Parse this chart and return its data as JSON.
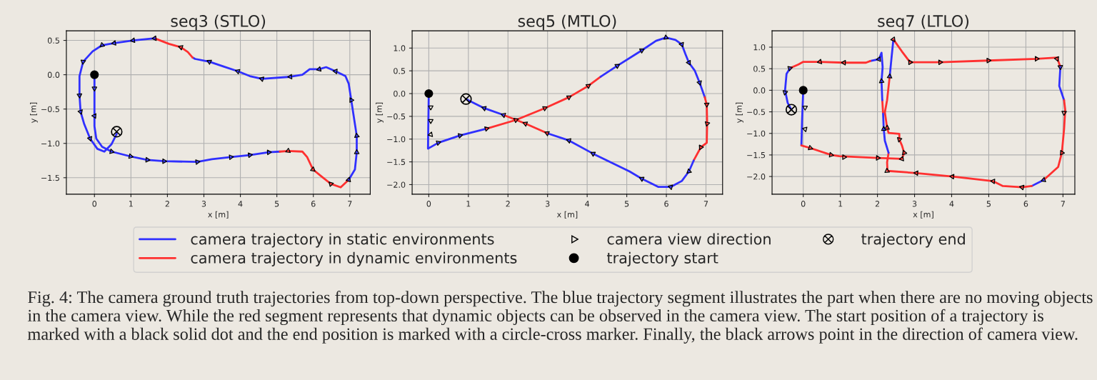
{
  "chart_data": [
    {
      "type": "line",
      "title": "seq3 (STLO)",
      "xlabel": "x [m]",
      "ylabel": "y [m]",
      "xlim": [
        -0.77,
        7.56
      ],
      "ylim": [
        -1.74,
        0.64
      ],
      "xticks": [
        0,
        1,
        2,
        3,
        4,
        5,
        6,
        7
      ],
      "yticks": [
        {
          "value": 0.5,
          "label": "0.5"
        },
        {
          "value": 0,
          "label": "0.0"
        },
        {
          "value": -0.5,
          "label": "−0.5"
        },
        {
          "value": -1,
          "label": "−1.0"
        },
        {
          "value": -1.5,
          "label": "−1.5"
        }
      ],
      "grid": true,
      "legend": "bottom",
      "annotations": [
        "Fig. 4: The camera ground truth trajectories from top-down perspective. The blue trajectory segment illustrates the part when there are no moving objects in the camera view. While the red segment represents that dynamic objects can be observed in the camera view. The start position of a trajectory is marked with a black solid dot and the end position is marked with a circle-cross marker. Finally, the black arrows point in the direction of camera view."
      ],
      "series": [
        {
          "name": "camera trajectory in static environments",
          "color": "#3030ff",
          "x": [
            0,
            0,
            0,
            0.05,
            0.21,
            0.47,
            0.99,
            1.45,
            1.91,
            2.82,
            3.22,
            3.74,
            4.26,
            4.78,
            5.08
          ],
          "values": [
            0,
            -0.37,
            -0.75,
            -0.93,
            -1.05,
            -1.12,
            -1.19,
            -1.24,
            -1.26,
            -1.27,
            -1.23,
            -1.2,
            -1.17,
            -1.13,
            -1.12
          ]
        },
        {
          "name": "camera trajectory in dynamic environments",
          "color": "#ff3030",
          "x": [
            5.08,
            5.31,
            5.7,
            5.83,
            5.99,
            6.22,
            6.48,
            6.75,
            6.97
          ],
          "values": [
            -1.12,
            -1.11,
            -1.12,
            -1.2,
            -1.38,
            -1.48,
            -1.59,
            -1.64,
            -1.53
          ]
        },
        {
          "color": "#3030ff",
          "x": [
            6.97,
            7.14,
            7.19,
            7.19,
            7.12,
            7.04,
            6.97,
            6.88,
            6.61,
            6.35,
            6.16,
            5.9,
            5.7,
            5.37,
            4.59,
            4.26,
            3.93,
            3.54,
            3.15,
            2.76,
            2.69
          ],
          "values": [
            -1.53,
            -1.38,
            -1.13,
            -0.89,
            -0.65,
            -0.37,
            -0.13,
            -0.02,
            0.05,
            0.11,
            0.08,
            0.08,
            0,
            -0.03,
            -0.06,
            -0.02,
            0.05,
            0.12,
            0.19,
            0.23,
            0.25
          ]
        },
        {
          "color": "#ff3030",
          "x": [
            2.69,
            2.56,
            2.37,
            2.04,
            1.65
          ],
          "values": [
            0.25,
            0.33,
            0.4,
            0.45,
            0.53
          ]
        },
        {
          "color": "#3030ff",
          "x": [
            1.65,
            1.06,
            0.54,
            0.21,
            -0.05,
            -0.31,
            -0.41,
            -0.41,
            -0.38,
            -0.28,
            -0.12,
            0.08,
            0.27,
            0.47,
            0.61
          ],
          "values": [
            0.53,
            0.5,
            0.46,
            0.43,
            0.34,
            0.19,
            -0.02,
            -0.3,
            -0.54,
            -0.72,
            -0.93,
            -1.08,
            -1.12,
            -1.01,
            -0.86
          ]
        },
        {
          "type": "scatter",
          "marker": "triangle",
          "name": "camera view direction",
          "color": "#000000",
          "x": [
            0,
            0,
            0.47,
            0.99,
            1.45,
            1.91,
            2.82,
            3.74,
            4.26,
            4.78,
            5.31,
            5.99,
            6.48,
            6.97,
            7.19,
            7.19,
            7.04,
            6.61,
            6.16,
            5.37,
            4.59,
            3.93,
            3.15,
            2.37,
            1.65,
            1.06,
            0.54,
            0.21,
            -0.31,
            -0.41,
            -0.38,
            -0.12
          ],
          "values": [
            -0.2,
            -0.6,
            -1.12,
            -1.19,
            -1.24,
            -1.26,
            -1.27,
            -1.2,
            -1.17,
            -1.13,
            -1.11,
            -1.38,
            -1.59,
            -1.53,
            -1.13,
            -0.89,
            -0.37,
            0.05,
            0.08,
            -0.03,
            -0.06,
            0.05,
            0.19,
            0.4,
            0.53,
            0.5,
            0.46,
            0.43,
            0.19,
            -0.3,
            -0.54,
            -0.93
          ]
        },
        {
          "type": "scatter",
          "marker": "circle",
          "name": "trajectory start",
          "color": "#000000",
          "x": [
            0
          ],
          "values": [
            0
          ]
        },
        {
          "type": "scatter",
          "marker": "cross",
          "name": "trajectory end",
          "color": "#000000",
          "x": [
            0.61
          ],
          "values": [
            -0.83
          ]
        }
      ]
    },
    {
      "type": "line",
      "title": "seq5 (MTLO)",
      "xlabel": "x [m]",
      "ylabel": "y [m]",
      "xlim": [
        -0.42,
        7.42
      ],
      "ylim": [
        -2.21,
        1.38
      ],
      "xticks": [
        0,
        1,
        2,
        3,
        4,
        5,
        6,
        7
      ],
      "yticks": [
        {
          "value": 1,
          "label": "1.0"
        },
        {
          "value": 0.5,
          "label": "0.5"
        },
        {
          "value": 0,
          "label": "0.0"
        },
        {
          "value": -0.5,
          "label": "−0.5"
        },
        {
          "value": -1,
          "label": "−1.0"
        },
        {
          "value": -1.5,
          "label": "−1.5"
        },
        {
          "value": -2,
          "label": "−2.0"
        }
      ],
      "grid": true,
      "series": [
        {
          "color": "#3030ff",
          "x": [
            0,
            -0.02,
            0.24,
            0.79,
            1.46
          ],
          "values": [
            0,
            -1.21,
            -1.08,
            -0.92,
            -0.77
          ]
        },
        {
          "color": "#ff3030",
          "x": [
            1.46,
            2.2,
            2.93,
            3.54,
            4.03,
            4.34
          ],
          "values": [
            -0.77,
            -0.58,
            -0.32,
            -0.08,
            0.17,
            0.37
          ]
        },
        {
          "color": "#3030ff",
          "x": [
            4.34,
            4.76,
            5.38,
            5.74,
            5.99,
            6.23,
            6.39,
            6.48,
            6.57,
            6.72,
            6.84,
            6.97
          ],
          "values": [
            0.37,
            0.61,
            0.95,
            1.16,
            1.23,
            1.18,
            1.08,
            0.87,
            0.68,
            0.5,
            0.24,
            -0.08
          ]
        },
        {
          "color": "#ff3030",
          "x": [
            6.97,
            7.02,
            7.03,
            7.02,
            6.87,
            6.69
          ],
          "values": [
            -0.08,
            -0.24,
            -0.66,
            -1.08,
            -1.18,
            -1.47
          ]
        },
        {
          "color": "#3030ff",
          "x": [
            6.69,
            6.57,
            6.39,
            6.11,
            5.8,
            5.38,
            5.07,
            4.15,
            3.54,
            2.99
          ],
          "values": [
            -1.47,
            -1.71,
            -1.92,
            -2.05,
            -2.05,
            -1.87,
            -1.71,
            -1.32,
            -1.03,
            -0.87
          ]
        },
        {
          "color": "#ff3030",
          "x": [
            2.99,
            2.44,
            1.89
          ],
          "values": [
            -0.87,
            -0.66,
            -0.47
          ]
        },
        {
          "color": "#3030ff",
          "x": [
            1.89,
            1.4,
            0.94
          ],
          "values": [
            -0.47,
            -0.32,
            -0.12
          ]
        },
        {
          "type": "scatter",
          "marker": "triangle",
          "color": "#000000",
          "x": [
            0.05,
            0.05,
            0.05,
            0.24,
            0.79,
            1.46,
            2.2,
            2.93,
            3.54,
            4.03,
            4.76,
            5.38,
            5.99,
            6.39,
            6.57,
            6.84,
            7.02,
            7.03,
            6.87,
            6.57,
            6.11,
            5.38,
            4.15,
            3.54,
            2.99,
            2.44,
            1.89,
            1.4
          ],
          "values": [
            -0.3,
            -0.6,
            -0.9,
            -1.08,
            -0.92,
            -0.77,
            -0.58,
            -0.32,
            -0.08,
            0.17,
            0.61,
            0.95,
            1.23,
            1.08,
            0.68,
            0.24,
            -0.24,
            -0.66,
            -1.18,
            -1.71,
            -2.05,
            -1.87,
            -1.32,
            -1.03,
            -0.87,
            -0.66,
            -0.47,
            -0.32
          ]
        },
        {
          "type": "scatter",
          "marker": "circle",
          "color": "#000000",
          "x": [
            0
          ],
          "values": [
            0
          ]
        },
        {
          "type": "scatter",
          "marker": "cross",
          "color": "#000000",
          "x": [
            0.94
          ],
          "values": [
            -0.12
          ]
        }
      ]
    },
    {
      "type": "line",
      "title": "seq7 (LTLO)",
      "xlabel": "x [m]",
      "ylabel": "y [m]",
      "xlim": [
        -0.84,
        7.32
      ],
      "ylim": [
        -2.41,
        1.38
      ],
      "xticks": [
        0,
        1,
        2,
        3,
        4,
        5,
        6,
        7
      ],
      "yticks": [
        {
          "value": 1,
          "label": "1.0"
        },
        {
          "value": 0.5,
          "label": "0.5"
        },
        {
          "value": 0,
          "label": "0.0"
        },
        {
          "value": -0.5,
          "label": "−0.5"
        },
        {
          "value": -1,
          "label": "−1.0"
        },
        {
          "value": -1.5,
          "label": "−1.5"
        },
        {
          "value": -2,
          "label": "−2.0"
        }
      ],
      "grid": true,
      "series": [
        {
          "color": "#3030ff",
          "x": [
            0,
            -0.03,
            -0.05
          ],
          "values": [
            0,
            -0.67,
            -1.28
          ]
        },
        {
          "color": "#ff3030",
          "x": [
            -0.05,
            0.19,
            0.75,
            0.97,
            2.01,
            2.66,
            2.72,
            2.66,
            2.59,
            2.59,
            2.3,
            2.26,
            2.2,
            2.26,
            2.33
          ],
          "values": [
            -1.28,
            -1.34,
            -1.5,
            -1.53,
            -1.57,
            -1.59,
            -1.45,
            -1.28,
            -1.14,
            -1.01,
            -0.99,
            -0.87,
            -0.51,
            -0.23,
            0.32
          ]
        },
        {
          "color": "#3030ff",
          "x": [
            2.33,
            2.38,
            2.43
          ],
          "values": [
            0.32,
            0.76,
            1.18
          ]
        },
        {
          "color": "#ff3030",
          "x": [
            2.43,
            2.66,
            2.88,
            3.69,
            4.99,
            6.29,
            6.84,
            6.93
          ],
          "values": [
            1.18,
            0.9,
            0.65,
            0.65,
            0.69,
            0.73,
            0.76,
            0.54
          ]
        },
        {
          "color": "#3030ff",
          "x": [
            6.93,
            6.9,
            7.03
          ],
          "values": [
            0.54,
            0.1,
            -0.23
          ]
        },
        {
          "color": "#ff3030",
          "x": [
            7.03,
            7.06,
            7.03,
            6.97,
            6.87,
            6.48
          ],
          "values": [
            -0.23,
            -0.45,
            -0.9,
            -1.45,
            -1.78,
            -2.08
          ]
        },
        {
          "color": "#3030ff",
          "x": [
            6.48,
            6.16
          ],
          "values": [
            -2.08,
            -2.22
          ]
        },
        {
          "color": "#ff3030",
          "x": [
            6.16,
            5.9,
            5.38,
            5.12,
            4.02,
            3.05,
            2.27,
            2.26,
            2.3
          ],
          "values": [
            -2.22,
            -2.25,
            -2.22,
            -2.11,
            -2.0,
            -1.92,
            -1.87,
            -1.67,
            -1.45
          ]
        },
        {
          "color": "#3030ff",
          "x": [
            2.3,
            2.2,
            2.17,
            2.15
          ],
          "values": [
            -1.45,
            -1.17,
            -0.9,
            -0.51
          ]
        },
        {
          "color": "#ff3030",
          "x": [
            2.15,
            2.13
          ],
          "values": [
            -0.51,
            -0.23
          ]
        },
        {
          "color": "#3030ff",
          "x": [
            2.13,
            2.11,
            2.14,
            2.11,
            2.04,
            1.81
          ],
          "values": [
            -0.23,
            0.21,
            0.54,
            0.87,
            0.72,
            0.68
          ]
        },
        {
          "color": "#ff3030",
          "x": [
            1.81,
            1.69,
            1.1,
            0.45,
            0,
            -0.13,
            -0.36
          ],
          "values": [
            0.68,
            0.64,
            0.64,
            0.66,
            0.66,
            0.6,
            0.51
          ]
        },
        {
          "color": "#3030ff",
          "x": [
            -0.36,
            -0.45,
            -0.49,
            -0.42,
            -0.32
          ],
          "values": [
            0.51,
            0.38,
            0,
            -0.29,
            -0.45
          ]
        },
        {
          "type": "scatter",
          "marker": "triangle",
          "color": "#000000",
          "x": [
            0.05,
            0.05,
            0.19,
            0.75,
            1.1,
            2.01,
            2.66,
            2.72,
            2.59,
            2.26,
            2.33,
            2.43,
            2.88,
            3.69,
            4.99,
            6.29,
            6.84,
            6.93,
            7.03,
            6.97,
            6.48,
            5.9,
            5.12,
            4.02,
            3.05,
            2.26,
            2.17,
            2.11,
            2.04,
            1.1,
            0.45,
            -0.36,
            -0.49
          ],
          "values": [
            -0.4,
            -0.9,
            -1.34,
            -1.5,
            -1.55,
            -1.57,
            -1.59,
            -1.45,
            -1.14,
            -0.87,
            0.32,
            1.18,
            0.65,
            0.65,
            0.69,
            0.73,
            0.73,
            0.54,
            -0.52,
            -1.45,
            -2.08,
            -2.25,
            -2.11,
            -2.0,
            -1.92,
            -1.87,
            -0.9,
            0.21,
            0.72,
            0.64,
            0.66,
            0.51,
            -0.05
          ]
        },
        {
          "type": "scatter",
          "marker": "circle",
          "color": "#000000",
          "x": [
            0
          ],
          "values": [
            0
          ]
        },
        {
          "type": "scatter",
          "marker": "cross",
          "color": "#000000",
          "x": [
            -0.32
          ],
          "values": [
            -0.45
          ]
        }
      ]
    }
  ]
}
